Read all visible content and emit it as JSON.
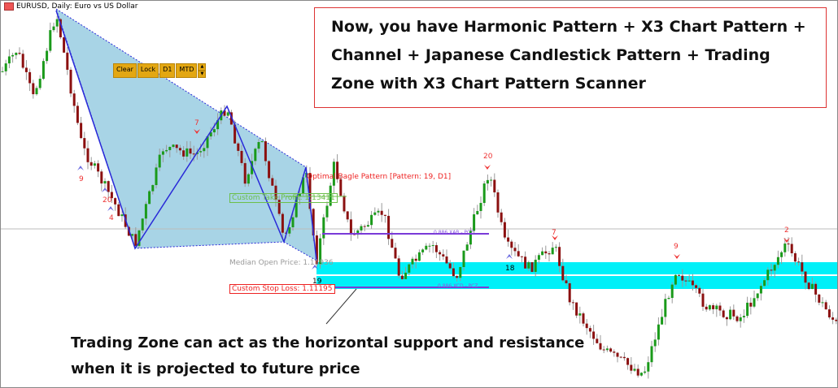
{
  "window": {
    "title": "EURUSD, Daily: Euro vs US Dollar"
  },
  "toolbar": {
    "clear": "Clear",
    "lock": "Lock",
    "timeframe": "D1",
    "mtd": "MTD",
    "spinner_up": "▲",
    "spinner_down": "▼"
  },
  "annotation": {
    "text": "Now, you have Harmonic Pattern + X3 Chart Pattern + Channel + Japanese Candlestick Pattern + Trading Zone with X3 Chart Pattern Scanner"
  },
  "bottom_note": {
    "line1": "Trading Zone can act as the horizontal support and resistance",
    "line2": "when it is projected to future price"
  },
  "pattern": {
    "name": "Optimal Bagle Pattern [Pattern: 19, D1]",
    "take_profit": "Custom Take Profit: 1.13411",
    "median_open": "Median Open Price: 1.11936",
    "stop_loss": "Custom Stop Loss: 1.11195",
    "pcz_upper": "0.886 XAB - PCZ",
    "pcz_lower": "0.886 XCD - PCZ"
  },
  "markers": [
    "9",
    "20",
    "4",
    "7",
    "20",
    "7",
    "9",
    "2",
    "18",
    "19"
  ],
  "colors": {
    "zone": "#00f0f8",
    "pattern_fill": "#a8d4e6",
    "pattern_line": "#2a2ad8",
    "bull": "#1a9a1a",
    "bear": "#8b1010",
    "label_red": "#ee2222",
    "note_border": "#dd3333",
    "toolbar": "#e3a712"
  }
}
